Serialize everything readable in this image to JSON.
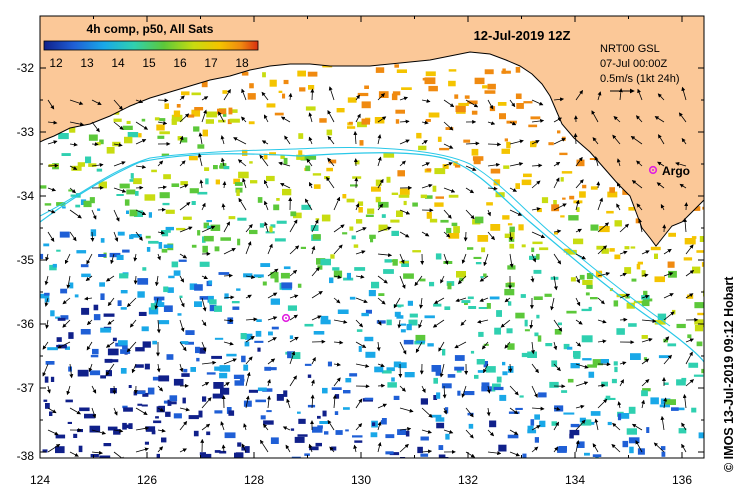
{
  "map": {
    "date_title": "12-Jul-2019 12Z",
    "colorbar": {
      "title": "4h comp, p50, All Sats",
      "ticks": [
        "12",
        "13",
        "14",
        "15",
        "16",
        "17",
        "18"
      ],
      "colors": [
        "#10208a",
        "#1f5fd6",
        "#19a8e8",
        "#2fd0b0",
        "#5cc83a",
        "#c8dc10",
        "#f4c400",
        "#f08a10",
        "#d83010"
      ]
    },
    "info": {
      "product": "NRT00 GSL",
      "date": "07-Jul 00:00Z",
      "scale": "0.5m/s (1kt 24h)"
    },
    "argo_label": "Argo",
    "credit": "© IMOS 13-Jul-2019 09:12 Hobart",
    "lon_ticks": [
      "124",
      "126",
      "128",
      "130",
      "132",
      "134",
      "136"
    ],
    "lat_ticks": [
      "-32",
      "-33",
      "-34",
      "-35",
      "-36",
      "-37",
      "-38"
    ],
    "colors": {
      "land": "#fbc898",
      "ocean": "#ffffff",
      "track": "#29c8e8",
      "argo": "#e020e0"
    }
  }
}
